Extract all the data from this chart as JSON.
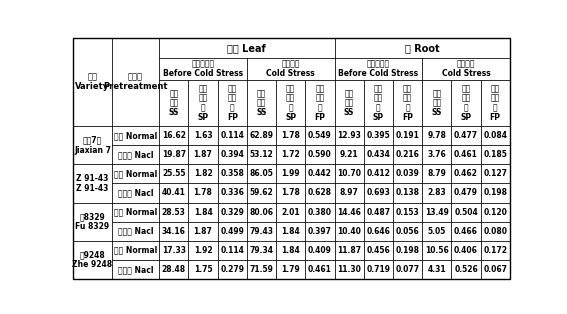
{
  "col_header_L1": [
    "叶片 Leaf",
    "根 Root"
  ],
  "col_header_L2": [
    "低温胁迫前",
    "Before Cold Stress",
    "低温胁迫",
    "Cold Stress",
    "低温胁迫前",
    "Before Cold Stress",
    "低温胁迫",
    "Cold Stress"
  ],
  "col_header_L3": [
    [
      "可溶",
      "性糖",
      "SS"
    ],
    [
      "可溶",
      "性蛋",
      "白",
      "SP"
    ],
    [
      "游离",
      "脯氨",
      "酸",
      "FP"
    ],
    [
      "可溶",
      "性糖",
      "SS"
    ],
    [
      "可溶",
      "性蛋",
      "白",
      "SP"
    ],
    [
      "游离",
      "脯氨",
      "酸",
      "FP"
    ],
    [
      "可溶",
      "性糖",
      "SS"
    ],
    [
      "可溶",
      "性蛋",
      "白",
      "SP"
    ],
    [
      "游离",
      "脯氨",
      "酸",
      "FP"
    ],
    [
      "可溶",
      "性糖",
      "SS"
    ],
    [
      "可溶",
      "性蛋",
      "白",
      "SP"
    ],
    [
      "游离",
      "脯氨",
      "酸",
      "FP"
    ]
  ],
  "variety_label_cn": "品种",
  "variety_label_en": "Variety",
  "pretreat_label_cn": "预处理",
  "pretreat_label_en": "Pretreatment",
  "row_groups": [
    {
      "variety_cn": "嘉和7号",
      "variety_en": "Jiaxian 7",
      "rows": [
        {
          "pretreat": "正常 Normal",
          "values": [
            "16.62",
            "1.63",
            "0.114",
            "62.89",
            "1.78",
            "0.549",
            "12.93",
            "0.395",
            "0.191",
            "9.78",
            "0.477",
            "0.084"
          ]
        },
        {
          "pretreat": "氯化钠 Nacl",
          "values": [
            "19.87",
            "1.87",
            "0.394",
            "53.12",
            "1.72",
            "0.590",
            "9.21",
            "0.434",
            "0.216",
            "3.76",
            "0.461",
            "0.185"
          ]
        }
      ]
    },
    {
      "variety_cn": "Z 91-43",
      "variety_en": "Z 91-43",
      "rows": [
        {
          "pretreat": "正常 Normal",
          "values": [
            "25.55",
            "1.82",
            "0.358",
            "86.05",
            "1.99",
            "0.442",
            "10.70",
            "0.412",
            "0.039",
            "8.79",
            "0.462",
            "0.127"
          ]
        },
        {
          "pretreat": "氯化钠 Nacl",
          "values": [
            "40.41",
            "1.78",
            "0.336",
            "59.62",
            "1.78",
            "0.628",
            "8.97",
            "0.693",
            "0.138",
            "2.83",
            "0.479",
            "0.198"
          ]
        }
      ]
    },
    {
      "variety_cn": "福8329",
      "variety_en": "Fu 8329",
      "rows": [
        {
          "pretreat": "正常 Normal",
          "values": [
            "28.53",
            "1.84",
            "0.329",
            "80.06",
            "2.01",
            "0.380",
            "14.46",
            "0.487",
            "0.153",
            "13.49",
            "0.504",
            "0.120"
          ]
        },
        {
          "pretreat": "氯化钠 Nacl",
          "values": [
            "34.16",
            "1.87",
            "0.499",
            "79.43",
            "1.84",
            "0.397",
            "10.40",
            "0.646",
            "0.056",
            "5.05",
            "0.466",
            "0.080"
          ]
        }
      ]
    },
    {
      "variety_cn": "浙9248",
      "variety_en": "Zhe 9248",
      "rows": [
        {
          "pretreat": "正常 Normal",
          "values": [
            "17.33",
            "1.92",
            "0.114",
            "79.34",
            "1.84",
            "0.409",
            "11.87",
            "0.456",
            "0.198",
            "10.56",
            "0.406",
            "0.172"
          ]
        },
        {
          "pretreat": "氯化钠 Nacl",
          "values": [
            "28.48",
            "1.75",
            "0.279",
            "71.59",
            "1.79",
            "0.461",
            "11.30",
            "0.719",
            "0.077",
            "4.31",
            "0.526",
            "0.067"
          ]
        }
      ]
    }
  ],
  "bg_color": "#ffffff",
  "line_color": "#000000"
}
